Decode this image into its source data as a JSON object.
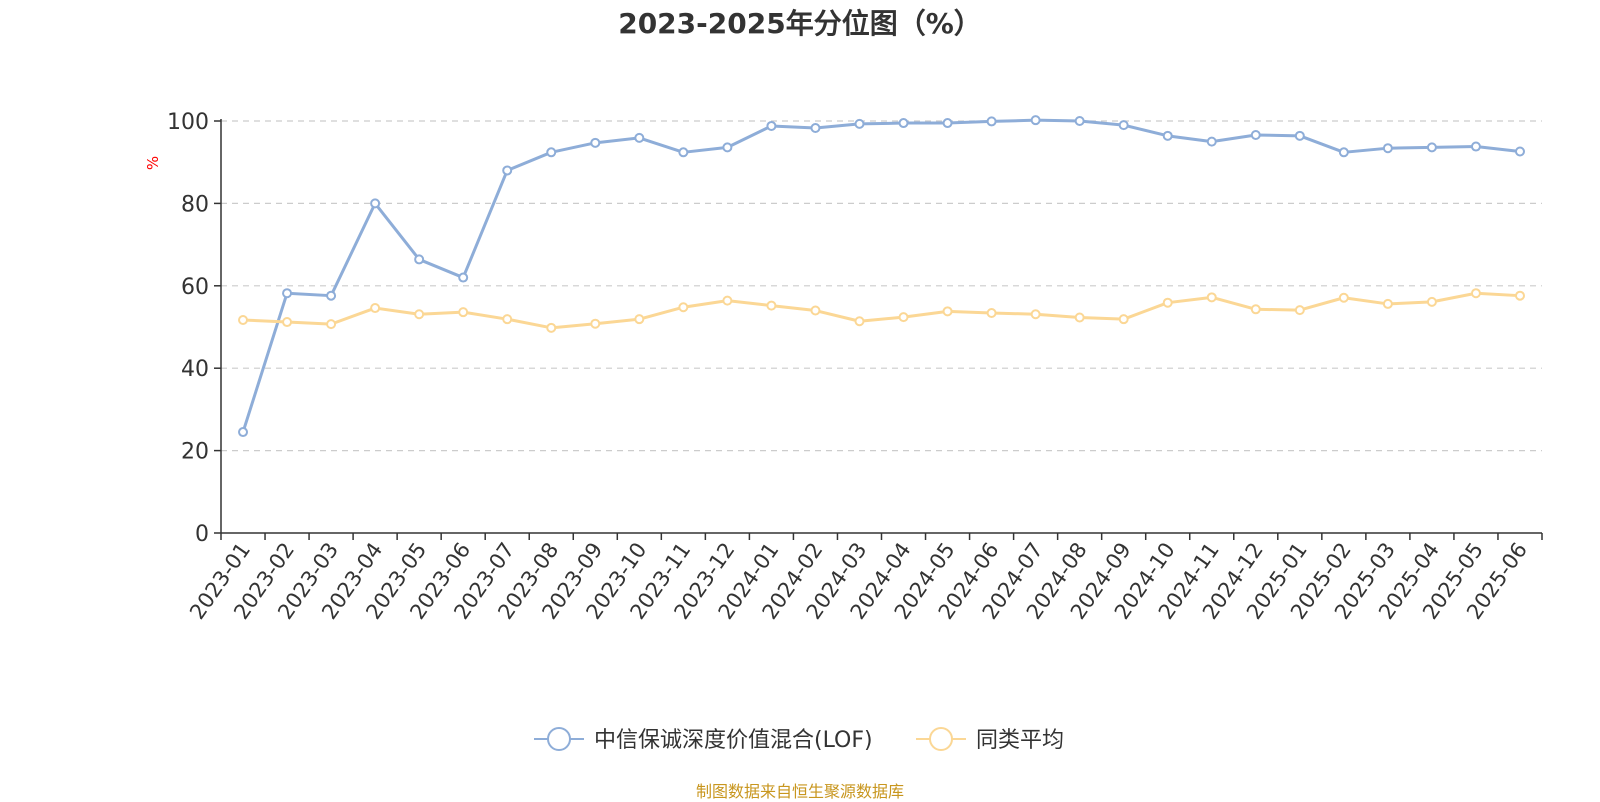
{
  "chart_data": {
    "type": "line",
    "title": "2023-2025年分位图（%）",
    "ylabel": "%",
    "xlabel": "",
    "ylim": [
      0,
      100
    ],
    "yticks": [
      0,
      20,
      40,
      60,
      80,
      100
    ],
    "grid": true,
    "legend_position": "bottom",
    "categories": [
      "2023-01",
      "2023-02",
      "2023-03",
      "2023-04",
      "2023-05",
      "2023-06",
      "2023-07",
      "2023-08",
      "2023-09",
      "2023-10",
      "2023-11",
      "2023-12",
      "2024-01",
      "2024-02",
      "2024-03",
      "2024-04",
      "2024-05",
      "2024-06",
      "2024-07",
      "2024-08",
      "2024-09",
      "2024-10",
      "2024-11",
      "2024-12",
      "2025-01",
      "2025-02",
      "2025-03",
      "2025-04",
      "2025-05",
      "2025-06"
    ],
    "series": [
      {
        "name": "中信保诚深度价值混合(LOF)",
        "color": "#8eadd8",
        "values": [
          24.5,
          58.2,
          57.6,
          80.0,
          66.4,
          62.0,
          88.0,
          92.4,
          94.7,
          95.9,
          92.4,
          93.6,
          98.8,
          98.3,
          99.3,
          99.5,
          99.5,
          99.9,
          100.2,
          100.0,
          99.0,
          96.4,
          95.0,
          96.6,
          96.4,
          92.4,
          93.4,
          93.6,
          93.8,
          92.6
        ]
      },
      {
        "name": "同类平均",
        "color": "#fbd795",
        "values": [
          51.7,
          51.2,
          50.7,
          54.6,
          53.1,
          53.6,
          51.9,
          49.8,
          50.8,
          51.9,
          54.8,
          56.4,
          55.2,
          54.0,
          51.4,
          52.4,
          53.8,
          53.4,
          53.1,
          52.3,
          51.9,
          55.9,
          57.2,
          54.3,
          54.1,
          57.1,
          55.6,
          56.1,
          58.2,
          57.6
        ]
      }
    ]
  },
  "source_text": "制图数据来自恒生聚源数据库"
}
